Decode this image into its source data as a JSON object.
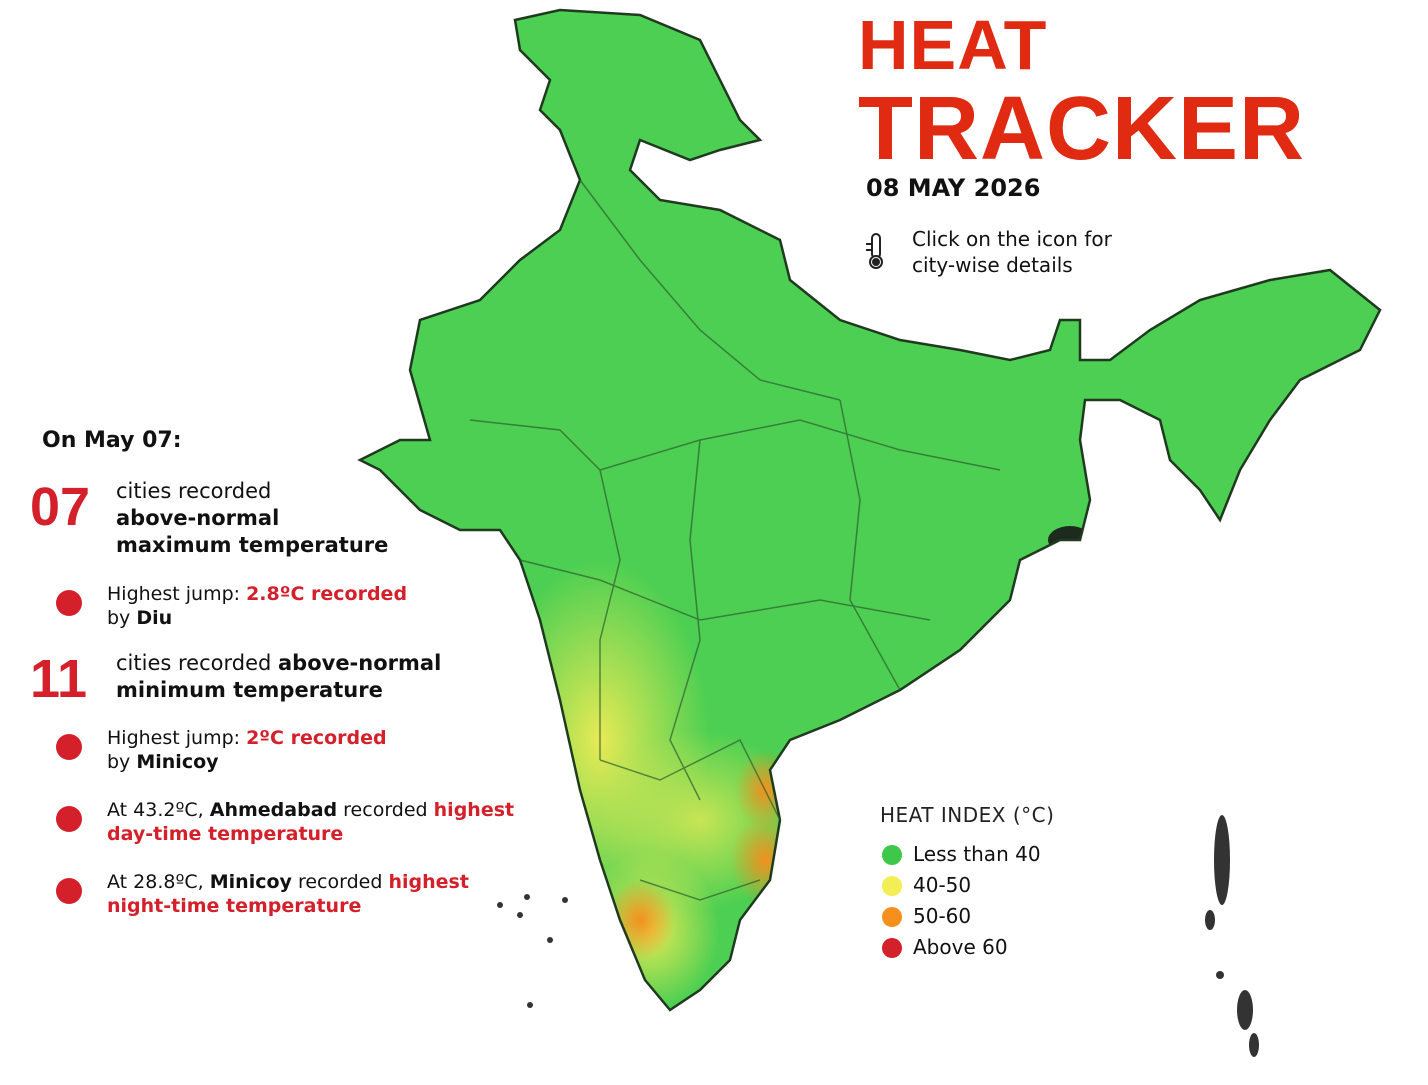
{
  "header": {
    "title": [
      "HEAT",
      "TRACKER"
    ],
    "date": "08 MAY 2026",
    "hint": [
      "Click on the icon for",
      "city-wise details"
    ]
  },
  "stats": {
    "heading": "On May 07:",
    "items": [
      {
        "kind": "count",
        "count": "07",
        "lines": [
          [
            {
              "text": "cities recorded",
              "style": "plain"
            }
          ],
          [
            {
              "text": "above-normal",
              "style": "bold"
            }
          ],
          [
            {
              "text": "maximum temperature",
              "style": "bold"
            }
          ]
        ]
      },
      {
        "kind": "bullet",
        "lines": [
          [
            {
              "text": "Highest jump: ",
              "style": "plain"
            },
            {
              "text": "2.8ºC recorded",
              "style": "red"
            }
          ],
          [
            {
              "text": "by ",
              "style": "plain"
            },
            {
              "text": "Diu",
              "style": "bold"
            }
          ]
        ]
      },
      {
        "kind": "count",
        "count": "11",
        "lines": [
          [
            {
              "text": "cities recorded ",
              "style": "plain"
            },
            {
              "text": "above-normal",
              "style": "bold"
            }
          ],
          [
            {
              "text": "minimum temperature",
              "style": "bold"
            }
          ]
        ]
      },
      {
        "kind": "bullet",
        "lines": [
          [
            {
              "text": "Highest jump: ",
              "style": "plain"
            },
            {
              "text": "2ºC recorded",
              "style": "red"
            }
          ],
          [
            {
              "text": "by ",
              "style": "plain"
            },
            {
              "text": "Minicoy",
              "style": "bold"
            }
          ]
        ]
      },
      {
        "kind": "bullet",
        "lines": [
          [
            {
              "text": "At 43.2ºC, ",
              "style": "plain"
            },
            {
              "text": "Ahmedabad",
              "style": "bold"
            },
            {
              "text": " recorded ",
              "style": "plain"
            },
            {
              "text": "highest",
              "style": "red"
            }
          ],
          [
            {
              "text": "day-time temperature",
              "style": "red"
            }
          ]
        ]
      },
      {
        "kind": "bullet",
        "lines": [
          [
            {
              "text": "At 28.8ºC, ",
              "style": "plain"
            },
            {
              "text": "Minicoy",
              "style": "bold"
            },
            {
              "text": " recorded ",
              "style": "plain"
            },
            {
              "text": "highest",
              "style": "red"
            }
          ],
          [
            {
              "text": "night-time temperature",
              "style": "red"
            }
          ]
        ]
      }
    ]
  },
  "legend": {
    "title": "HEAT INDEX (°C)",
    "items": [
      {
        "label": "Less than 40",
        "color": "#3ec84a"
      },
      {
        "label": "40-50",
        "color": "#f2ef55"
      },
      {
        "label": "50-60",
        "color": "#f5901e"
      },
      {
        "label": "Above 60",
        "color": "#d4202a"
      }
    ]
  }
}
